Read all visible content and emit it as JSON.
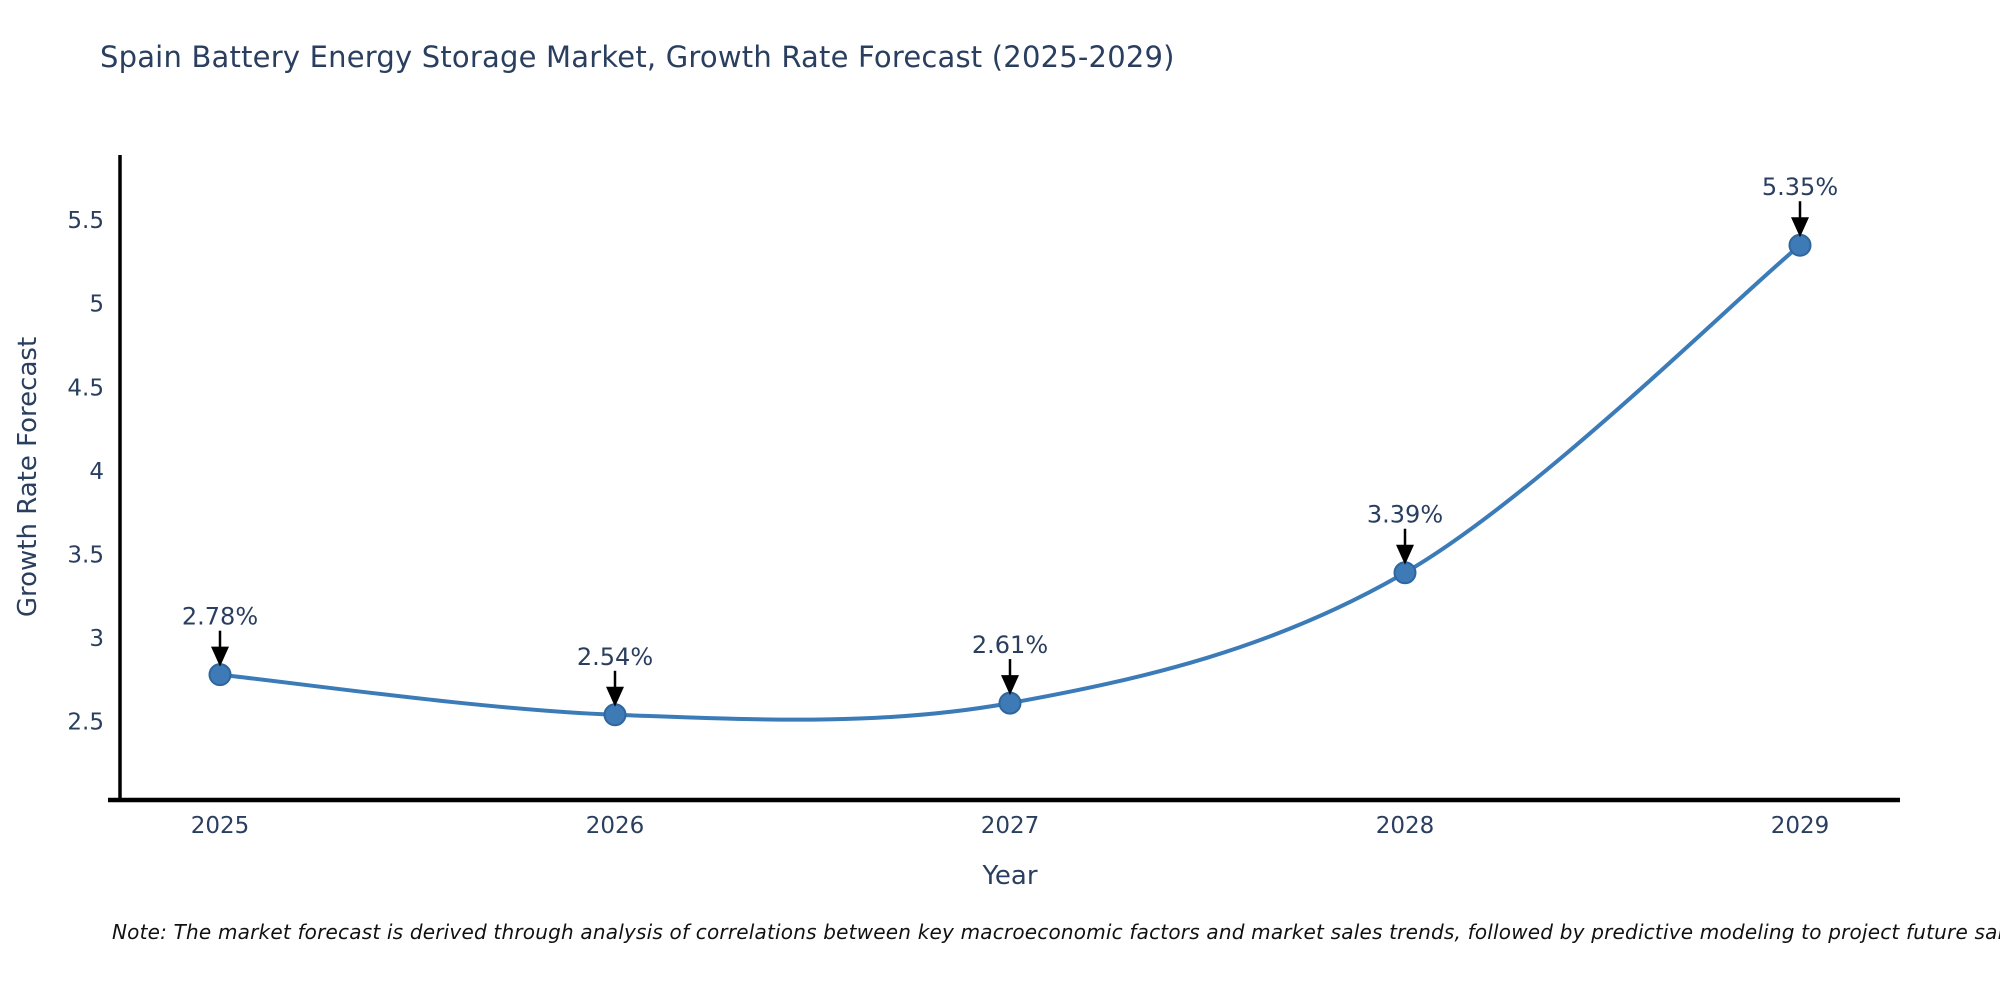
{
  "note": "Note: The market forecast is derived through analysis of correlations between key macroeconomic factors and market sales trends, followed by predictive modeling to project future sales",
  "chart_data": {
    "type": "line",
    "title": "Spain Battery Energy Storage Market, Growth Rate Forecast (2025-2029)",
    "xlabel": "Year",
    "ylabel": "Growth Rate Forecast",
    "x": [
      2025,
      2026,
      2027,
      2028,
      2029
    ],
    "series": [
      {
        "name": "Growth Rate Forecast",
        "values": [
          2.78,
          2.54,
          2.61,
          3.39,
          5.35
        ],
        "labels": [
          "2.78%",
          "2.54%",
          "2.61%",
          "3.39%",
          "5.35%"
        ]
      }
    ],
    "yticks": [
      2.5,
      3,
      3.5,
      4,
      4.5,
      5,
      5.5
    ],
    "ylim": [
      2.03,
      5.89
    ],
    "grid": false,
    "legend": "none",
    "annotation_style": "label-with-down-arrow-to-point",
    "line_shape": "spline",
    "colors": {
      "line": "#3b7bb8",
      "marker_fill": "#3d7ab6",
      "marker_edge": "#2f669e",
      "arrow": "#000000",
      "axis_line": "#000000",
      "text": "#2a3f5f",
      "note_text": "#111111"
    }
  }
}
